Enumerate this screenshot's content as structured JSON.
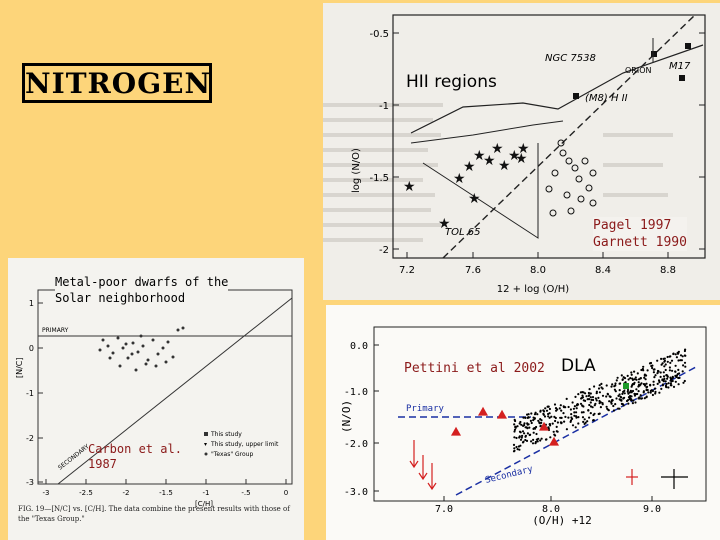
{
  "slide_title": "NITROGEN",
  "hii": {
    "panel_title": "HII regions",
    "reference": "Pagel 1997\nGarnett 1990",
    "xlabel": "12 + log (O/H)",
    "ylabel": "log (N/O)",
    "xticks": [
      "7.2",
      "7.6",
      "8.0",
      "8.4",
      "8.8"
    ],
    "yticks": [
      "-0.5",
      "-1",
      "-1.5",
      "-2"
    ],
    "labels": {
      "ngc": "NGC 7538",
      "orion": "ORION",
      "m17": "M17",
      "m8": "(M8) H II",
      "tol": "TOL 65"
    }
  },
  "dwarfs": {
    "panel_title": "Metal-poor dwarfs of the\nSolar neighborhood",
    "reference": "Carbon et al.\n1987",
    "xlabel": "[C/H]",
    "ylabel": "[N/C]",
    "xticks": [
      "-3",
      "-2.5",
      "-2",
      "-1.5",
      "-1",
      "-.5",
      "0"
    ],
    "yticks": [
      "1",
      "0",
      "-1",
      "-2",
      "-3"
    ],
    "primary_label": "PRIMARY",
    "secondary_label": "SECONDARY",
    "legend": [
      "This study",
      "This study, upper limit",
      "\"Texas\" Group"
    ],
    "caption": "FIG. 19—[N/C] vs. [C/H]. The data combine the present results with those of the \"Texas Group.\""
  },
  "dla": {
    "panel_title": "DLA",
    "reference": "Pettini et al 2002",
    "xlabel": "(O/H) +12",
    "ylabel": "(N/O)",
    "xticks": [
      "7.0",
      "8.0",
      "9.0"
    ],
    "yticks": [
      "0.0",
      "-1.0",
      "-2.0",
      "-3.0"
    ],
    "primary_label": "Primary",
    "secondary_label": "Secondary"
  },
  "colors": {
    "background": "#fdd57a",
    "reference_text": "#8b1a1a",
    "primary_line": "#1a2fa3",
    "dla_red": "#d42020",
    "dla_green": "#1c9a2a"
  }
}
